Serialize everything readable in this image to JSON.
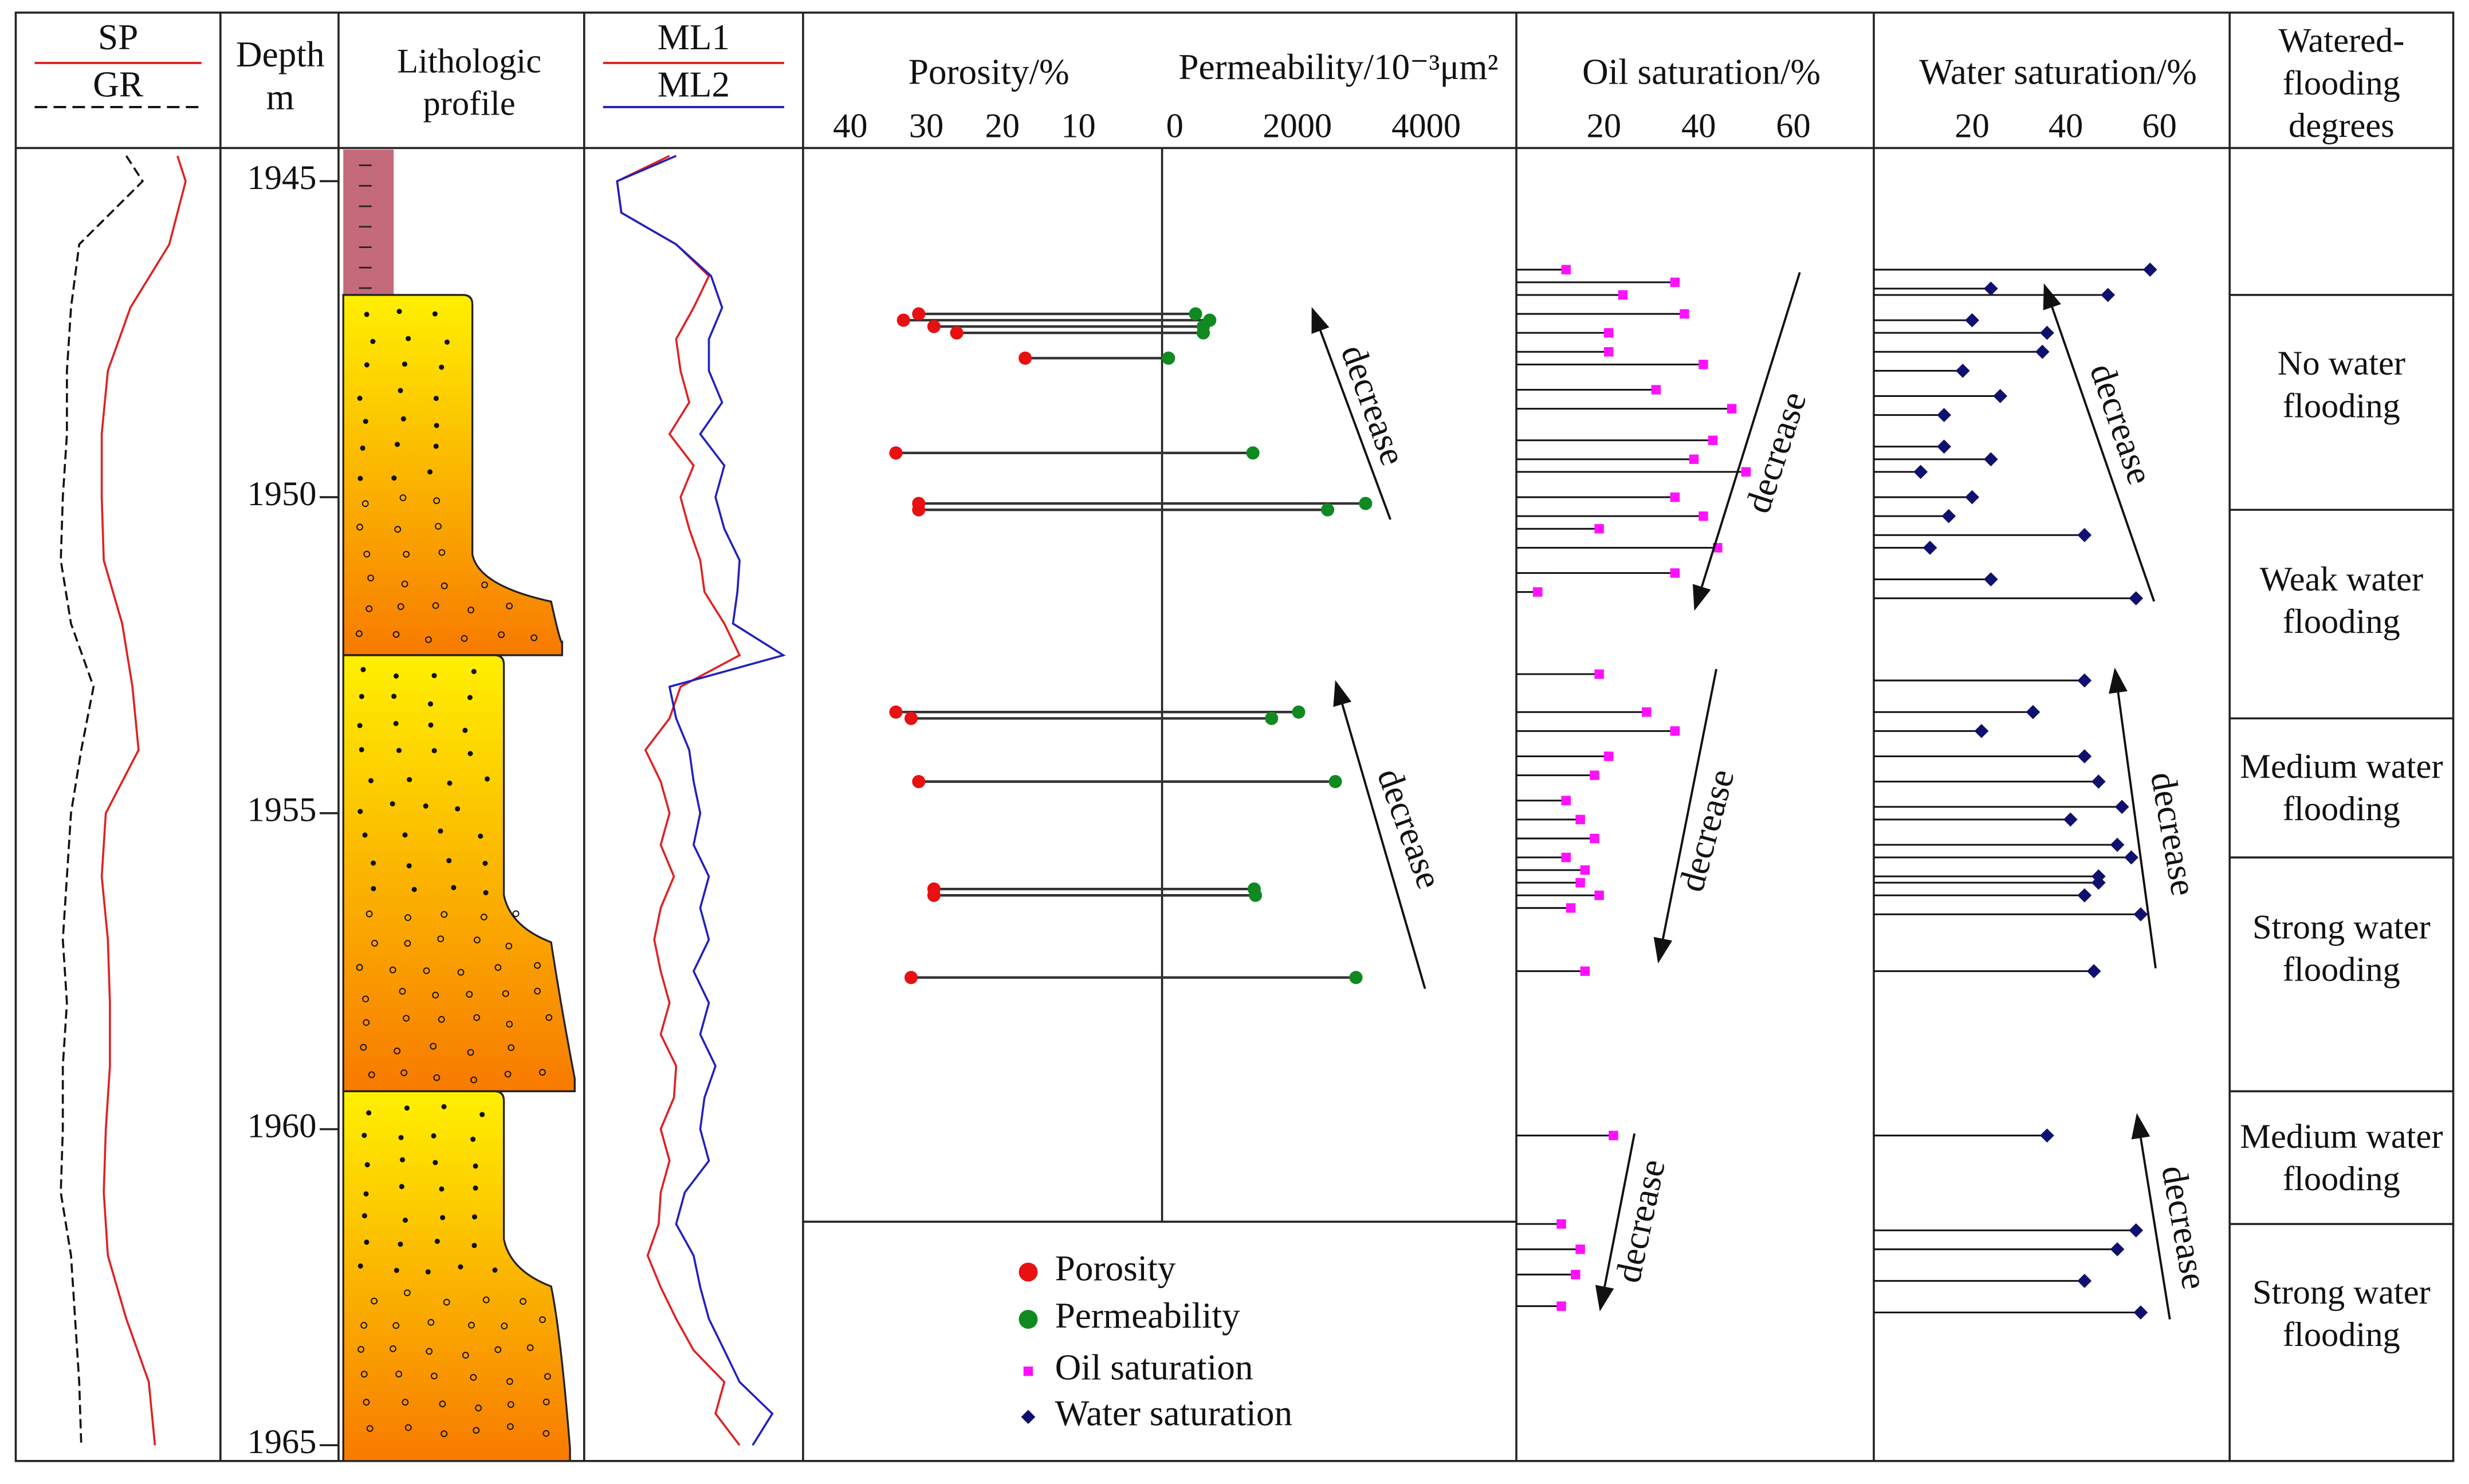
{
  "chart_data": [
    {
      "type": "curve",
      "xlim": [
        0,
        100
      ],
      "series": [
        {
          "name": "SP",
          "color": "#e02020",
          "line_style": "solid",
          "depths": [
            1944.6,
            1945,
            1946,
            1947,
            1948,
            1949,
            1950,
            1951,
            1952,
            1953,
            1954,
            1955,
            1956,
            1957,
            1958,
            1959,
            1960,
            1961,
            1962,
            1963,
            1964,
            1965
          ],
          "values": [
            79,
            83,
            75,
            56,
            45,
            42,
            42,
            43,
            52,
            57,
            60,
            44,
            42,
            45,
            46,
            46,
            44,
            43,
            45,
            54,
            65,
            68
          ]
        },
        {
          "name": "GR",
          "color": "#111111",
          "line_style": "dashed",
          "depths": [
            1944.6,
            1945,
            1946,
            1947,
            1948,
            1949,
            1950,
            1951,
            1952,
            1953,
            1954,
            1955,
            1956,
            1957,
            1958,
            1959,
            1960,
            1961,
            1962,
            1963,
            1964,
            1965
          ],
          "values": [
            54,
            62,
            31,
            27,
            25,
            25,
            23,
            22,
            27,
            38,
            32,
            27,
            25,
            23,
            25,
            23,
            23,
            22,
            27,
            29,
            31,
            32
          ]
        }
      ]
    },
    {
      "type": "depth",
      "title": "Depth",
      "unit": "m",
      "ylim": [
        1944.5,
        1965.25
      ],
      "yticks": [
        1945,
        1950,
        1955,
        1960,
        1965
      ]
    },
    {
      "type": "lithology",
      "title": "Lithologic profile",
      "layers": [
        {
          "top": 1944.5,
          "bottom": 1946.8,
          "color": "#c46a7a"
        },
        {
          "top": 1946.8,
          "bottom": 1952.5,
          "color": "#fff000",
          "color_bottom": "#f77a00"
        },
        {
          "top": 1952.5,
          "bottom": 1959.4,
          "color": "#fff000",
          "color_bottom": "#f77a00"
        },
        {
          "top": 1959.4,
          "bottom": 1965.25,
          "color": "#fff000",
          "color_bottom": "#f77a00"
        }
      ]
    },
    {
      "type": "curve",
      "xlim": [
        0,
        100
      ],
      "series": [
        {
          "name": "ML1",
          "color": "#e02020",
          "line_style": "solid",
          "depths": [
            1944.6,
            1945,
            1945.5,
            1946,
            1946.5,
            1947,
            1947.5,
            1948,
            1948.5,
            1949,
            1949.5,
            1950,
            1950.5,
            1951,
            1951.5,
            1952,
            1952.5,
            1953,
            1953.5,
            1954,
            1954.5,
            1955,
            1955.5,
            1956,
            1956.5,
            1957,
            1957.5,
            1958,
            1958.5,
            1959,
            1959.5,
            1960,
            1960.5,
            1961,
            1961.5,
            1962,
            1962.5,
            1963,
            1963.5,
            1964,
            1964.5,
            1965
          ],
          "values": [
            39,
            15,
            17,
            42,
            57,
            50,
            42,
            44,
            48,
            39,
            50,
            44,
            48,
            53,
            55,
            64,
            71,
            44,
            39,
            28,
            35,
            39,
            35,
            41,
            35,
            32,
            35,
            39,
            35,
            42,
            41,
            35,
            39,
            35,
            34,
            29,
            35,
            42,
            50,
            64,
            60,
            71
          ]
        },
        {
          "name": "ML2",
          "color": "#2020c0",
          "line_style": "solid",
          "depths": [
            1944.6,
            1945,
            1945.5,
            1946,
            1946.5,
            1947,
            1947.5,
            1948,
            1948.5,
            1949,
            1949.5,
            1950,
            1950.5,
            1951,
            1951.5,
            1952,
            1952.5,
            1953,
            1953.5,
            1954,
            1954.5,
            1955,
            1955.5,
            1956,
            1956.5,
            1957,
            1957.5,
            1958,
            1958.5,
            1959,
            1959.5,
            1960,
            1960.5,
            1961,
            1961.5,
            1962,
            1962.5,
            1963,
            1963.5,
            1964,
            1964.5,
            1965
          ],
          "values": [
            42,
            15,
            17,
            42,
            58,
            63,
            57,
            57,
            63,
            53,
            64,
            60,
            64,
            71,
            70,
            68,
            91,
            39,
            42,
            48,
            50,
            53,
            50,
            57,
            53,
            57,
            50,
            57,
            53,
            60,
            55,
            53,
            57,
            46,
            42,
            50,
            53,
            57,
            64,
            71,
            86,
            77
          ]
        }
      ]
    },
    {
      "type": "dumbbell",
      "title": "Porosity/%",
      "x2_title": "Permeability/10⁻³μm²",
      "xlim": [
        46,
        -1
      ],
      "xticks": [
        40,
        30,
        20,
        10
      ],
      "x2lim": [
        -100,
        5400
      ],
      "x2ticks": [
        0,
        2000,
        4000
      ],
      "annotations": [
        "decrease",
        "decrease"
      ],
      "series": [
        {
          "name": "Porosity",
          "color": "#e81010",
          "depths": [
            1947.1,
            1947.2,
            1947.3,
            1947.4,
            1947.8,
            1949.3,
            1950.1,
            1950.2,
            1953.4,
            1953.5,
            1954.5,
            1956.2,
            1956.3,
            1957.6
          ],
          "values": [
            31,
            33,
            29,
            26,
            17,
            34,
            31,
            31,
            34,
            32,
            31,
            29,
            29,
            32
          ]
        },
        {
          "name": "Permeability",
          "color": "#108a20",
          "axis": "x2",
          "depths": [
            1947.1,
            1947.2,
            1947.3,
            1947.4,
            1947.8,
            1949.3,
            1950.1,
            1950.2,
            1953.4,
            1953.5,
            1954.5,
            1956.2,
            1956.3,
            1957.6
          ],
          "values": [
            420,
            640,
            540,
            540,
            0,
            1310,
            3060,
            2470,
            2020,
            1600,
            2590,
            1330,
            1350,
            2910
          ]
        }
      ]
    },
    {
      "type": "lollipop",
      "title": "Oil saturation/%",
      "xlim": [
        1.5,
        77
      ],
      "xticks": [
        20,
        40,
        60
      ],
      "marker": "square",
      "annotations": [
        "decrease",
        "decrease",
        "decrease"
      ],
      "series": [
        {
          "name": "Oil saturation",
          "color": "#ff10ff",
          "depths": [
            1946.4,
            1946.6,
            1946.8,
            1947.1,
            1947.4,
            1947.7,
            1947.9,
            1948.3,
            1948.6,
            1949.1,
            1949.4,
            1949.6,
            1950.0,
            1950.3,
            1950.5,
            1950.8,
            1951.2,
            1951.5,
            1952.8,
            1953.4,
            1953.7,
            1954.1,
            1954.4,
            1954.8,
            1955.1,
            1955.4,
            1955.7,
            1955.9,
            1956.1,
            1956.3,
            1956.5,
            1957.5,
            1960.1,
            1961.5,
            1961.9,
            1962.3,
            1962.8
          ],
          "values": [
            12,
            35,
            24,
            37,
            21,
            21,
            41,
            31,
            47,
            43,
            39,
            50,
            35,
            41,
            19,
            44,
            35,
            6,
            19,
            29,
            35,
            21,
            18,
            12,
            15,
            18,
            12,
            16,
            15,
            19,
            13,
            16,
            22,
            11,
            15,
            14,
            11
          ]
        }
      ]
    },
    {
      "type": "lollipop",
      "title": "Water saturation/%",
      "xlim": [
        -1,
        75
      ],
      "xticks": [
        20,
        40,
        60
      ],
      "marker": "diamond",
      "annotations": [
        "decrease",
        "decrease",
        "decrease"
      ],
      "series": [
        {
          "name": "Water saturation",
          "color": "#10106e",
          "depths": [
            1946.4,
            1946.7,
            1946.8,
            1947.2,
            1947.4,
            1947.7,
            1948.0,
            1948.4,
            1948.7,
            1949.2,
            1949.4,
            1949.6,
            1950.0,
            1950.3,
            1950.6,
            1950.8,
            1951.3,
            1951.6,
            1952.9,
            1953.4,
            1953.7,
            1954.1,
            1954.5,
            1954.9,
            1955.1,
            1955.5,
            1955.7,
            1956.0,
            1956.1,
            1956.3,
            1956.6,
            1957.5,
            1960.1,
            1961.6,
            1961.9,
            1962.4,
            1962.9
          ],
          "values": [
            58,
            24,
            49,
            20,
            36,
            35,
            18,
            26,
            14,
            14,
            24,
            9,
            20,
            15,
            44,
            11,
            24,
            55,
            44,
            33,
            22,
            44,
            47,
            52,
            41,
            51,
            54,
            47,
            47,
            44,
            56,
            46,
            36,
            55,
            51,
            44,
            56
          ]
        }
      ]
    },
    {
      "type": "zones",
      "title": "Watered-flooding degrees",
      "zones": [
        {
          "top": 1946.8,
          "bottom": 1950.2,
          "label": "No water flooding"
        },
        {
          "top": 1950.2,
          "bottom": 1953.5,
          "label": "Weak water flooding"
        },
        {
          "top": 1953.5,
          "bottom": 1955.7,
          "label": "Medium water flooding"
        },
        {
          "top": 1955.7,
          "bottom": 1959.4,
          "label": "Strong water flooding"
        },
        {
          "top": 1959.4,
          "bottom": 1961.5,
          "label": "Medium water flooding"
        },
        {
          "top": 1961.5,
          "bottom": 1965.25,
          "label": "Strong water flooding"
        }
      ]
    }
  ]
}
